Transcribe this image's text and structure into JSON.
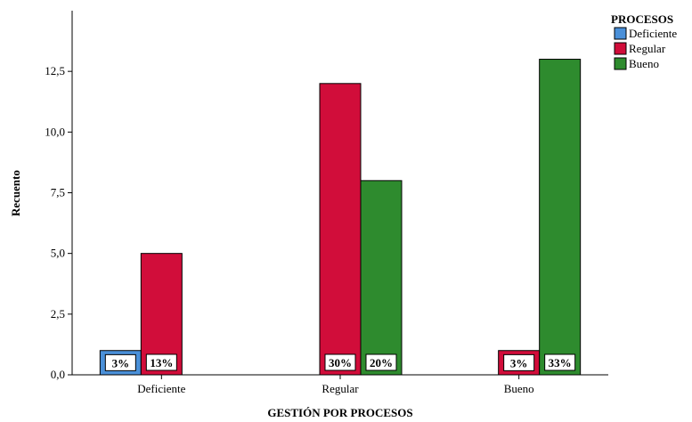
{
  "chart_data": {
    "type": "bar",
    "categories": [
      "Deficiente",
      "Regular",
      "Bueno"
    ],
    "series": [
      {
        "name": "Deficiente",
        "color": "#4a90d9",
        "values": [
          1,
          0,
          0
        ],
        "labels": [
          "3%",
          "",
          ""
        ]
      },
      {
        "name": "Regular",
        "color": "#d10d3a",
        "values": [
          5,
          12,
          1
        ],
        "labels": [
          "13%",
          "30%",
          "3%"
        ]
      },
      {
        "name": "Bueno",
        "color": "#2e8b2e",
        "values": [
          0,
          8,
          13
        ],
        "labels": [
          "",
          "20%",
          "33%"
        ]
      }
    ],
    "xlabel": "GESTIÓN POR PROCESOS",
    "ylabel": "Recuento",
    "ylim": [
      0,
      15
    ],
    "yticks": [
      "0,0",
      "2,5",
      "5,0",
      "7,5",
      "10,0",
      "12,5"
    ],
    "ytick_values": [
      0,
      2.5,
      5,
      7.5,
      10,
      12.5
    ],
    "legend": {
      "title": "PROCESOS",
      "position": "top-right"
    },
    "grid": false
  }
}
